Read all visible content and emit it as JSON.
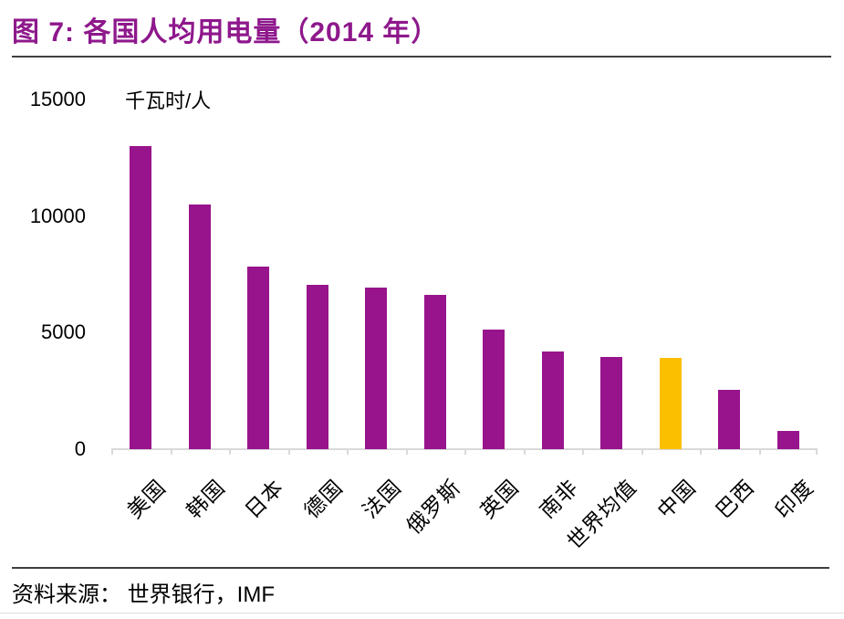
{
  "figure": {
    "title": "图 7:  各国人均用电量（2014 年）",
    "source": "资料来源：  世界银行，IMF"
  },
  "chart_data": {
    "type": "bar",
    "title": "各国人均用电量（2014 年）",
    "unit_label": "千瓦时/人",
    "categories": [
      "美国",
      "韩国",
      "日本",
      "德国",
      "法国",
      "俄罗斯",
      "英国",
      "南非",
      "世界均值",
      "中国",
      "巴西",
      "印度"
    ],
    "values": [
      13000,
      10500,
      7820,
      7040,
      6940,
      6600,
      5130,
      4200,
      3960,
      3900,
      2560,
      800
    ],
    "highlight_index": 9,
    "highlight_category": "中国",
    "xlabel": "",
    "ylabel": "千瓦时/人",
    "ylim": [
      0,
      15000
    ],
    "yticks": [
      15000,
      10000,
      5000,
      0
    ],
    "grid": false,
    "legend": "none"
  },
  "colors": {
    "title": "#8e188c",
    "bar": "#98148c",
    "highlight": "#fcbf00",
    "divider": "#3f3f3f",
    "axis": "#d9d9d9",
    "text": "#000000"
  }
}
